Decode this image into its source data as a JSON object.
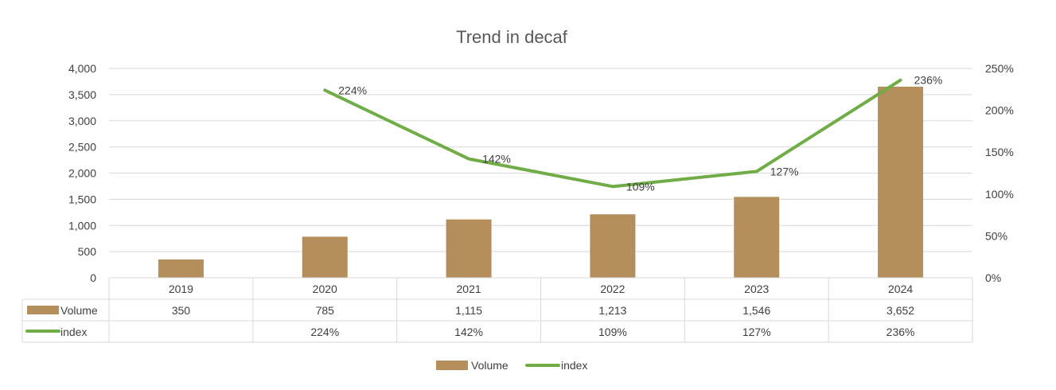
{
  "chart_data": {
    "type": "bar",
    "title": "Trend in decaf",
    "categories": [
      "2019",
      "2020",
      "2021",
      "2022",
      "2023",
      "2024"
    ],
    "series": [
      {
        "name": "Volume",
        "type": "bar",
        "axis": "left",
        "color": "#B58F5B",
        "values": [
          350,
          785,
          1115,
          1213,
          1546,
          3652
        ],
        "table_labels": [
          "350",
          "785",
          "1,115",
          "1,213",
          "1,546",
          "3,652"
        ]
      },
      {
        "name": "index",
        "type": "line",
        "axis": "right",
        "color": "#70AD47",
        "values": [
          null,
          224,
          142,
          109,
          127,
          236
        ],
        "labels": [
          "",
          "224%",
          "142%",
          "109%",
          "127%",
          "236%"
        ]
      }
    ],
    "ylim": [
      0,
      4000
    ],
    "y_ticks": [
      "0",
      "500",
      "1,000",
      "1,500",
      "2,000",
      "2,500",
      "3,000",
      "3,500",
      "4,000"
    ],
    "y2lim": [
      0,
      250
    ],
    "y2_ticks": [
      "0%",
      "50%",
      "100%",
      "150%",
      "200%",
      "250%"
    ],
    "grid": true,
    "data_table": true,
    "legend_position": "bottom"
  }
}
